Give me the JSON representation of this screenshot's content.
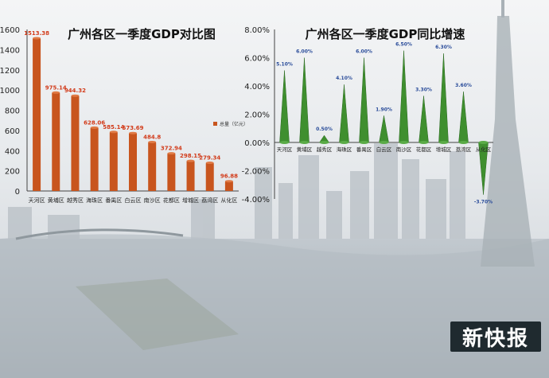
{
  "brand": {
    "logo_text": "新快报"
  },
  "colors": {
    "bar": "#c8551e",
    "bar_label": "#d23b1a",
    "cone": "#3f8f2f",
    "cone_label": "#2a4c9a"
  },
  "chart_data": [
    {
      "type": "bar",
      "title": "广州各区一季度GDP对比图",
      "legend": "总量（亿元）",
      "legend_position": "top-right",
      "categories": [
        "天河区",
        "黄埔区",
        "越秀区",
        "海珠区",
        "番禺区",
        "白云区",
        "南沙区",
        "花都区",
        "增城区",
        "荔湾区",
        "从化区"
      ],
      "values": [
        1513.38,
        975.14,
        944.32,
        628.06,
        585.14,
        573.69,
        484.8,
        372.94,
        298.15,
        279.34,
        96.88
      ],
      "value_labels": [
        "1513.38",
        "975.14",
        "944.32",
        "628.06",
        "585.14",
        "573.69",
        "484.8",
        "372.94",
        "298.15",
        "279.34",
        "96.88"
      ],
      "yticks": [
        "0",
        "200",
        "400",
        "600",
        "800",
        "1000",
        "1200",
        "1400",
        "1600"
      ],
      "ylim": [
        0,
        1600
      ],
      "grid": false
    },
    {
      "type": "cone-bar",
      "title": "广州各区一季度GDP同比增速",
      "categories": [
        "天河区",
        "黄埔区",
        "越秀区",
        "海珠区",
        "番禺区",
        "白云区",
        "南沙区",
        "花都区",
        "增城区",
        "荔湾区",
        "从化区"
      ],
      "values": [
        5.1,
        6.0,
        0.5,
        4.1,
        6.0,
        1.9,
        6.5,
        3.3,
        6.3,
        3.6,
        -3.7
      ],
      "value_labels": [
        "5.10%",
        "6.00%",
        "0.50%",
        "4.10%",
        "6.00%",
        "1.90%",
        "6.50%",
        "3.30%",
        "6.30%",
        "3.60%",
        "-3.70%"
      ],
      "yticks": [
        "-4.00%",
        "-2.00%",
        "0.00%",
        "2.00%",
        "4.00%",
        "6.00%",
        "8.00%"
      ],
      "ylim": [
        -4,
        8
      ],
      "grid": false
    }
  ]
}
